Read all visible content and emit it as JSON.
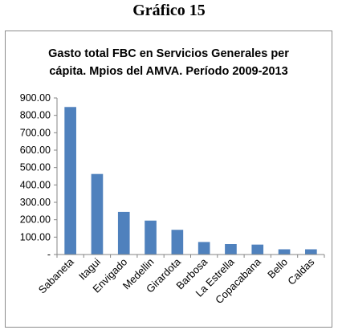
{
  "figure_caption": "Gráfico 15",
  "chart_data": {
    "type": "bar",
    "title_lines": [
      "Gasto total  FBC en Servicios Generales per",
      "cápita. Mpios del AMVA. Período 2009-2013"
    ],
    "categories": [
      "Sabaneta",
      "Itagui",
      "Envigado",
      "Medellin",
      "Girardota",
      "Barbosa",
      "La Estrella",
      "Copacabana",
      "Bello",
      "Caldas"
    ],
    "values": [
      848,
      463,
      245,
      195,
      142,
      72,
      60,
      57,
      30,
      30
    ],
    "ylim": [
      0,
      900
    ],
    "yticks": [
      0,
      100,
      200,
      300,
      400,
      500,
      600,
      700,
      800,
      900
    ],
    "ytick_labels": [
      "-",
      "100.00",
      "200.00",
      "300.00",
      "400.00",
      "500.00",
      "600.00",
      "700.00",
      "800.00",
      "900.00"
    ],
    "bar_color": "#4f81bd",
    "grid": false,
    "legend": false
  }
}
